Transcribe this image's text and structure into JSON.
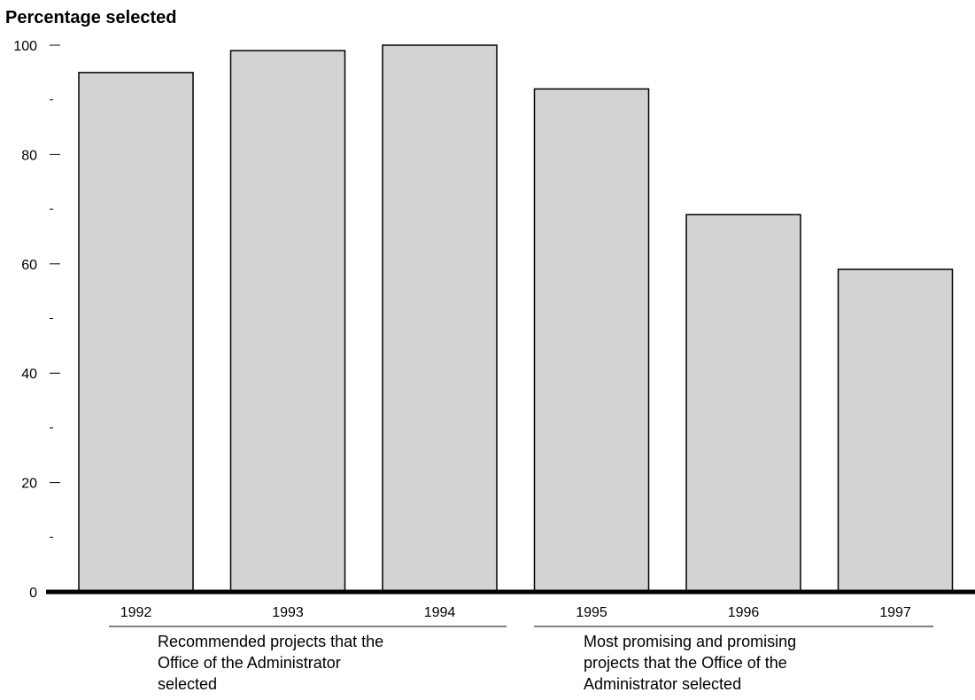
{
  "chart_data": {
    "type": "bar",
    "title": "",
    "ylabel": "Percentage selected",
    "xlabel": "",
    "categories": [
      "1992",
      "1993",
      "1994",
      "1995",
      "1996",
      "1997"
    ],
    "values": [
      95,
      99,
      100,
      92,
      69,
      59
    ],
    "ylim": [
      0,
      100
    ],
    "y_ticks": [
      "0",
      "20",
      "40",
      "60",
      "80",
      "100"
    ],
    "grid": false,
    "legend": "none",
    "bar_color": "#d3d3d3",
    "groups": [
      {
        "label": "Recommended projects that the Office of the Administrator selected",
        "lines": [
          "Recommended projects that the",
          "Office of the Administrator",
          "selected"
        ],
        "categories": [
          "1992",
          "1993",
          "1994"
        ]
      },
      {
        "label": "Most promising and promising projects that the Office of the Administrator selected",
        "lines": [
          "Most promising and promising",
          "projects that the Office of the",
          "Administrator selected"
        ],
        "categories": [
          "1995",
          "1996",
          "1997"
        ]
      }
    ]
  }
}
